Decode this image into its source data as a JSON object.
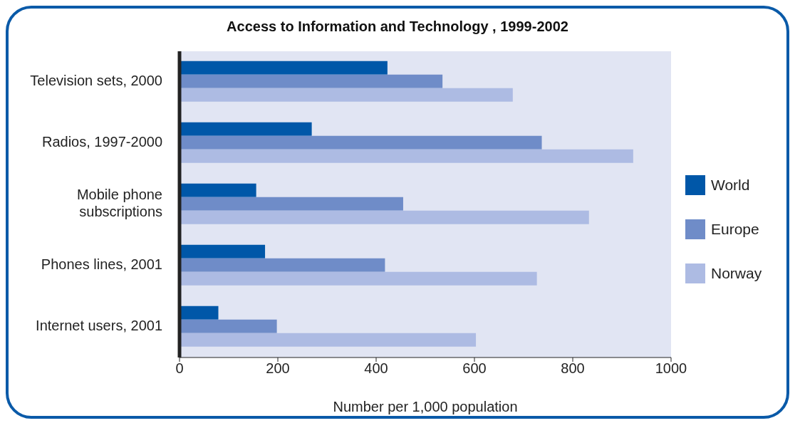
{
  "chart_data": {
    "type": "bar",
    "orientation": "horizontal",
    "title": "Access to Information and Technology , 1999-2002",
    "xlabel": "Number per 1,000 population",
    "categories": [
      "Television sets, 2000",
      "Radios, 1997-2000",
      "Mobile phone subscriptions",
      "Phones lines, 2001",
      "Internet users, 2001"
    ],
    "series": [
      {
        "name": "World",
        "color": "#0057a8",
        "values": [
          423,
          269,
          156,
          174,
          79
        ]
      },
      {
        "name": "Europe",
        "color": "#6f8cc8",
        "values": [
          535,
          737,
          455,
          418,
          198
        ]
      },
      {
        "name": "Norway",
        "color": "#adbbe3",
        "values": [
          678,
          923,
          833,
          727,
          603
        ]
      }
    ],
    "xlim": [
      0,
      1000
    ],
    "xticks": [
      0,
      200,
      400,
      600,
      800,
      1000
    ],
    "legend": "right"
  }
}
